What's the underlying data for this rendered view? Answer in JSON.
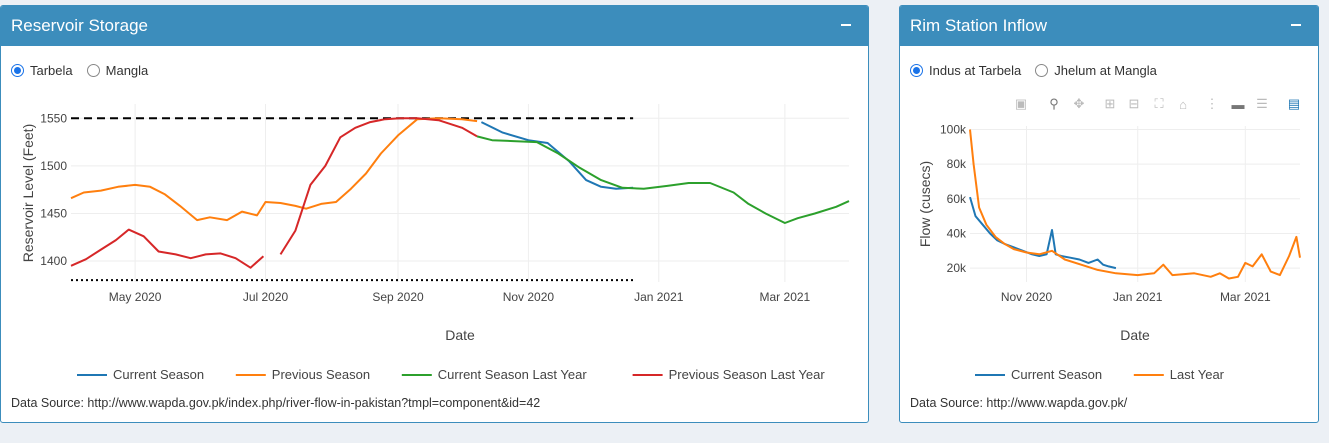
{
  "reservoir": {
    "title": "Reservoir Storage",
    "radios": [
      {
        "label": "Tarbela",
        "selected": true
      },
      {
        "label": "Mangla",
        "selected": false
      }
    ],
    "source": "Data Source: http://www.wapda.gov.pk/index.php/river-flow-in-pakistan?tmpl=component&id=42",
    "chart_data": {
      "type": "line",
      "xlabel": "Date",
      "ylabel": "Reservoir Level (Feet)",
      "x_range": [
        "2020-04-01",
        "2021-03-31"
      ],
      "ylim": [
        1378,
        1565
      ],
      "yticks": [
        "1400",
        "1450",
        "1500",
        "1550"
      ],
      "ytick_values": [
        1400,
        1450,
        1500,
        1550
      ],
      "xticks": [
        "May 2020",
        "Jul 2020",
        "Sep 2020",
        "Nov 2020",
        "Jan 2021",
        "Mar 2021"
      ],
      "xtick_dates": [
        "2020-05-01",
        "2020-07-01",
        "2020-09-01",
        "2020-11-01",
        "2021-01-01",
        "2021-03-01"
      ],
      "reference_lines": [
        {
          "value": 1550,
          "style": "dashed",
          "from": "2020-04-01",
          "to": "2020-12-20"
        },
        {
          "value": 1380,
          "style": "dotted",
          "from": "2020-04-01",
          "to": "2020-12-20"
        }
      ],
      "legend": "bottom",
      "series": [
        {
          "name": "Current Season",
          "color": "#1f77b4",
          "x": [
            "2020-10-10",
            "2020-10-20",
            "2020-11-01",
            "2020-11-10",
            "2020-11-20",
            "2020-11-28",
            "2020-12-05",
            "2020-12-12",
            "2020-12-20"
          ],
          "y": [
            1546,
            1535,
            1527,
            1524,
            1505,
            1485,
            1478,
            1476,
            1477
          ]
        },
        {
          "name": "Previous Season",
          "color": "#ff7f0e",
          "x": [
            "2020-04-01",
            "2020-04-07",
            "2020-04-15",
            "2020-04-23",
            "2020-05-01",
            "2020-05-08",
            "2020-05-15",
            "2020-05-22",
            "2020-05-30",
            "2020-06-05",
            "2020-06-13",
            "2020-06-20",
            "2020-06-27",
            "2020-07-01",
            "2020-07-08",
            "2020-07-15",
            "2020-07-20",
            "2020-07-27",
            "2020-08-03",
            "2020-08-10",
            "2020-08-17",
            "2020-08-24",
            "2020-09-01",
            "2020-09-10",
            "2020-09-20",
            "2020-10-01",
            "2020-10-08"
          ],
          "y": [
            1466,
            1472,
            1474,
            1478,
            1480,
            1478,
            1470,
            1458,
            1443,
            1446,
            1443,
            1452,
            1448,
            1462,
            1461,
            1458,
            1455,
            1460,
            1462,
            1476,
            1492,
            1513,
            1532,
            1549,
            1550,
            1549,
            1547
          ]
        },
        {
          "name": "Current Season Last Year",
          "color": "#2ca02c",
          "x": [
            "2020-10-08",
            "2020-10-15",
            "2020-10-25",
            "2020-11-05",
            "2020-11-15",
            "2020-11-25",
            "2020-12-05",
            "2020-12-15",
            "2020-12-25",
            "2021-01-05",
            "2021-01-15",
            "2021-01-25",
            "2021-02-05",
            "2021-02-12",
            "2021-02-20",
            "2021-03-01",
            "2021-03-07",
            "2021-03-15",
            "2021-03-25",
            "2021-03-31"
          ],
          "y": [
            1531,
            1527,
            1526,
            1525,
            1513,
            1498,
            1485,
            1477,
            1476,
            1479,
            1482,
            1482,
            1472,
            1460,
            1450,
            1440,
            1445,
            1450,
            1457,
            1463
          ]
        },
        {
          "name": "Previous Season Last Year",
          "color": "#d62728",
          "x": [
            "2020-04-01",
            "2020-04-08",
            "2020-04-15",
            "2020-04-22",
            "2020-04-28",
            "2020-05-05",
            "2020-05-12",
            "2020-05-20",
            "2020-05-27",
            "2020-06-03",
            "2020-06-10",
            "2020-06-17",
            "2020-06-24",
            "2020-06-30",
            "2020-07-01",
            "2020-07-08",
            "2020-07-15",
            "2020-07-22",
            "2020-07-29",
            "2020-08-05",
            "2020-08-12",
            "2020-08-19",
            "2020-08-26",
            "2020-09-02",
            "2020-09-10",
            "2020-09-20",
            "2020-10-01",
            "2020-10-08"
          ],
          "y": [
            1395,
            1402,
            1412,
            1422,
            1433,
            1426,
            1410,
            1407,
            1403,
            1407,
            1408,
            1403,
            1393,
            1405,
            null,
            1407,
            1432,
            1480,
            1500,
            1530,
            1540,
            1546,
            1549,
            1550,
            1550,
            1548,
            1540,
            1531
          ]
        }
      ]
    }
  },
  "rim": {
    "title": "Rim Station Inflow",
    "radios": [
      {
        "label": "Indus at Tarbela",
        "selected": true
      },
      {
        "label": "Jhelum at Mangla",
        "selected": false
      }
    ],
    "toolbar": [
      "camera-icon",
      "zoom-icon",
      "pan-icon",
      "zoom-in-icon",
      "zoom-out-icon",
      "autoscale-icon",
      "reset-axes-icon",
      "spike-lines-icon",
      "hover-closest-icon",
      "hover-compare-icon",
      "plotly-logo-icon"
    ],
    "source": "Data Source: http://www.wapda.gov.pk/",
    "chart_data": {
      "type": "line",
      "xlabel": "Date",
      "ylabel": "Flow (cusecs)",
      "x_range": [
        "2020-10-01",
        "2021-03-31"
      ],
      "ylim": [
        12000,
        102000
      ],
      "yticks": [
        "20k",
        "40k",
        "60k",
        "80k",
        "100k"
      ],
      "ytick_values": [
        20000,
        40000,
        60000,
        80000,
        100000
      ],
      "xticks": [
        "Nov 2020",
        "Jan 2021",
        "Mar 2021"
      ],
      "xtick_dates": [
        "2020-11-01",
        "2021-01-01",
        "2021-03-01"
      ],
      "legend": "bottom",
      "series": [
        {
          "name": "Current Season",
          "color": "#1f77b4",
          "x": [
            "2020-10-01",
            "2020-10-04",
            "2020-10-08",
            "2020-10-12",
            "2020-10-16",
            "2020-10-20",
            "2020-10-25",
            "2020-10-30",
            "2020-11-04",
            "2020-11-08",
            "2020-11-12",
            "2020-11-15",
            "2020-11-17",
            "2020-11-20",
            "2020-11-25",
            "2020-11-30",
            "2020-12-05",
            "2020-12-10",
            "2020-12-13",
            "2020-12-16",
            "2020-12-20"
          ],
          "y": [
            61000,
            50000,
            45000,
            40000,
            36000,
            34000,
            32000,
            30000,
            28000,
            27000,
            28000,
            42000,
            28000,
            27000,
            26000,
            25000,
            23000,
            25000,
            22000,
            21000,
            20000
          ]
        },
        {
          "name": "Last Year",
          "color": "#ff7f0e",
          "x": [
            "2020-10-01",
            "2020-10-03",
            "2020-10-06",
            "2020-10-10",
            "2020-10-15",
            "2020-10-20",
            "2020-10-25",
            "2020-11-01",
            "2020-11-08",
            "2020-11-15",
            "2020-11-22",
            "2020-12-01",
            "2020-12-10",
            "2020-12-20",
            "2021-01-01",
            "2021-01-10",
            "2021-01-15",
            "2021-01-20",
            "2021-02-01",
            "2021-02-10",
            "2021-02-15",
            "2021-02-20",
            "2021-02-25",
            "2021-03-01",
            "2021-03-05",
            "2021-03-10",
            "2021-03-15",
            "2021-03-20",
            "2021-03-25",
            "2021-03-29",
            "2021-03-31"
          ],
          "y": [
            100000,
            80000,
            55000,
            45000,
            38000,
            34000,
            31000,
            29000,
            28000,
            30000,
            25000,
            22000,
            19000,
            17000,
            16000,
            17000,
            22000,
            16000,
            17000,
            15000,
            17000,
            14000,
            15000,
            23000,
            21000,
            28000,
            18000,
            16000,
            27000,
            38000,
            26000
          ]
        }
      ]
    }
  }
}
